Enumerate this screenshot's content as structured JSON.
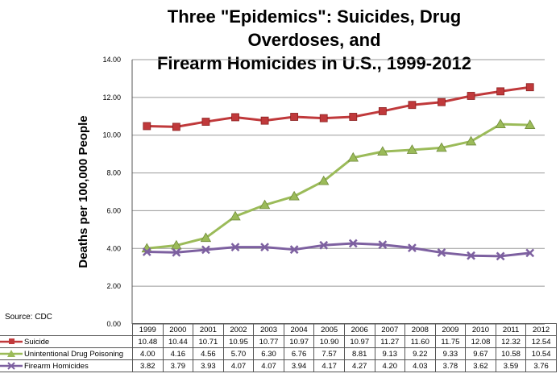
{
  "chart_data": {
    "type": "line",
    "title": "Three \"Epidemics\": Suicides, Drug Overdoses, and Firearm Homicides in U.S., 1999-2012",
    "title_lines": [
      "Three \"Epidemics\": Suicides, Drug Overdoses, and",
      "Firearm Homicides in U.S., 1999-2012"
    ],
    "ylabel": "Deaths per 100,000 People",
    "xlabel": "",
    "ylim": [
      0,
      14
    ],
    "yticks": [
      "0.00",
      "2.00",
      "4.00",
      "6.00",
      "8.00",
      "10.00",
      "12.00",
      "14.00"
    ],
    "grid": true,
    "categories": [
      "1999",
      "2000",
      "2001",
      "2002",
      "2003",
      "2004",
      "2005",
      "2006",
      "2007",
      "2008",
      "2009",
      "2010",
      "2011",
      "2012"
    ],
    "series": [
      {
        "name": "Suicide",
        "color": "#c0393b",
        "marker": "square",
        "values": [
          10.48,
          10.44,
          10.71,
          10.95,
          10.77,
          10.97,
          10.9,
          10.97,
          11.27,
          11.6,
          11.75,
          12.08,
          12.32,
          12.54
        ],
        "labels": [
          "10.48",
          "10.44",
          "10.71",
          "10.95",
          "10.77",
          "10.97",
          "10.90",
          "10.97",
          "11.27",
          "11.60",
          "11.75",
          "12.08",
          "12.32",
          "12.54"
        ]
      },
      {
        "name": "Unintentional Drug Poisoning",
        "color": "#9bbb59",
        "marker": "triangle",
        "values": [
          4.0,
          4.16,
          4.56,
          5.7,
          6.3,
          6.76,
          7.57,
          8.81,
          9.13,
          9.22,
          9.33,
          9.67,
          10.58,
          10.54
        ],
        "labels": [
          "4.00",
          "4.16",
          "4.56",
          "5.70",
          "6.30",
          "6.76",
          "7.57",
          "8.81",
          "9.13",
          "9.22",
          "9.33",
          "9.67",
          "10.58",
          "10.54"
        ]
      },
      {
        "name": "Firearm Homicides",
        "color": "#7d60a0",
        "marker": "x",
        "values": [
          3.82,
          3.79,
          3.93,
          4.07,
          4.07,
          3.94,
          4.17,
          4.27,
          4.2,
          4.03,
          3.78,
          3.62,
          3.59,
          3.76
        ],
        "labels": [
          "3.82",
          "3.79",
          "3.93",
          "4.07",
          "4.07",
          "3.94",
          "4.17",
          "4.27",
          "4.20",
          "4.03",
          "3.78",
          "3.62",
          "3.59",
          "3.76"
        ]
      }
    ],
    "source": "Source: CDC"
  }
}
